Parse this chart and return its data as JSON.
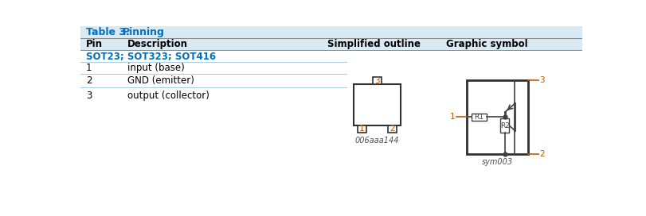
{
  "title_label": "Table 3.",
  "title_text": "Pinning",
  "col_headers": [
    "Pin",
    "Description",
    "Simplified outline",
    "Graphic symbol"
  ],
  "col_header_bg": "#daeaf5",
  "sot_label": "SOT23; SOT323; SOT416",
  "sot_color": "#0070c0",
  "rows": [
    {
      "pin": "1",
      "desc": "input (base)"
    },
    {
      "pin": "2",
      "desc": "GND (emitter)"
    },
    {
      "pin": "3",
      "desc": "output (collector)"
    }
  ],
  "divider_color": "#a8cfe0",
  "header_text_color": "#000000",
  "pin_text_color": "#000000",
  "outline_label": "006aaa144",
  "symbol_label": "sym003",
  "title_bg": "#daeaf5",
  "sot_bg": "#eef5fb",
  "pin_number_color": "#c05a00",
  "box_border_color": "#303030",
  "line_color": "#404040",
  "background_color": "#ffffff"
}
